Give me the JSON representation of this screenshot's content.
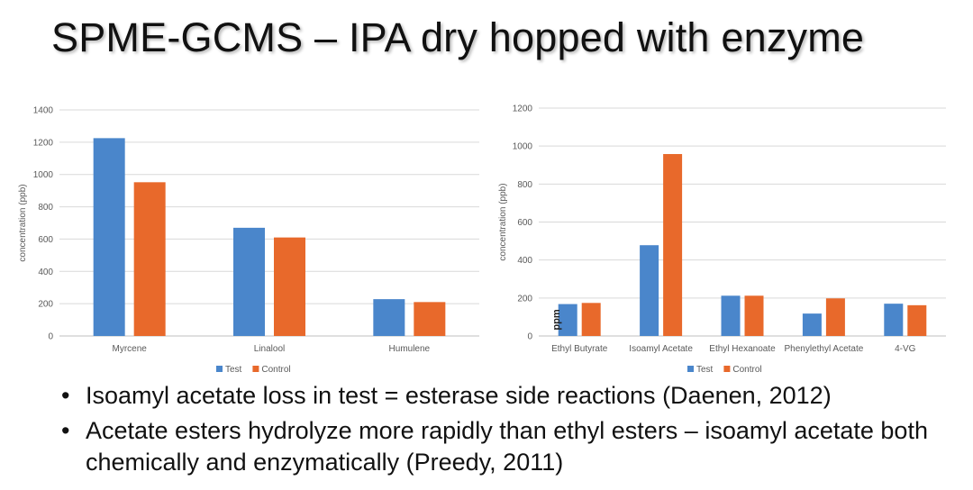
{
  "slide": {
    "title": "SPME-GCMS – IPA dry hopped with enzyme",
    "bullet_glyph": "•",
    "bullets": [
      "Isoamyl acetate loss in test = esterase side reactions (Daenen, 2012)",
      "Acetate esters hydrolyze more rapidly than ethyl esters – isoamyl acetate both chemically and enzymatically (Preedy, 2011)"
    ]
  },
  "colors": {
    "test": "#4a86cb",
    "control": "#e8692b",
    "grid": "#d9d9d9",
    "axis_text": "#595959"
  },
  "chart_data": [
    {
      "type": "bar",
      "categories": [
        "Myrcene",
        "Linalool",
        "Humulene"
      ],
      "series": [
        {
          "name": "Test",
          "values": [
            1225,
            670,
            228
          ]
        },
        {
          "name": "Control",
          "values": [
            952,
            610,
            210
          ]
        }
      ],
      "ylabel": "concentration (ppb)",
      "ylim": [
        0,
        1400
      ],
      "yticks": [
        0,
        200,
        400,
        600,
        800,
        1000,
        1200,
        1400
      ],
      "grid": true,
      "legend": "bottom"
    },
    {
      "type": "bar",
      "categories": [
        "Ethyl Butyrate",
        "Isoamyl Acetate",
        "Ethyl Hexanoate",
        "Phenylethyl Acetate",
        "4-VG"
      ],
      "series": [
        {
          "name": "Test",
          "values": [
            168,
            478,
            212,
            118,
            170
          ]
        },
        {
          "name": "Control",
          "values": [
            174,
            958,
            212,
            198,
            162
          ]
        }
      ],
      "ylabel": "concentration (ppb)",
      "ylim": [
        0,
        1200
      ],
      "yticks": [
        0,
        200,
        400,
        600,
        800,
        1000,
        1200
      ],
      "grid": true,
      "legend": "bottom",
      "annotation": "ppm"
    }
  ]
}
